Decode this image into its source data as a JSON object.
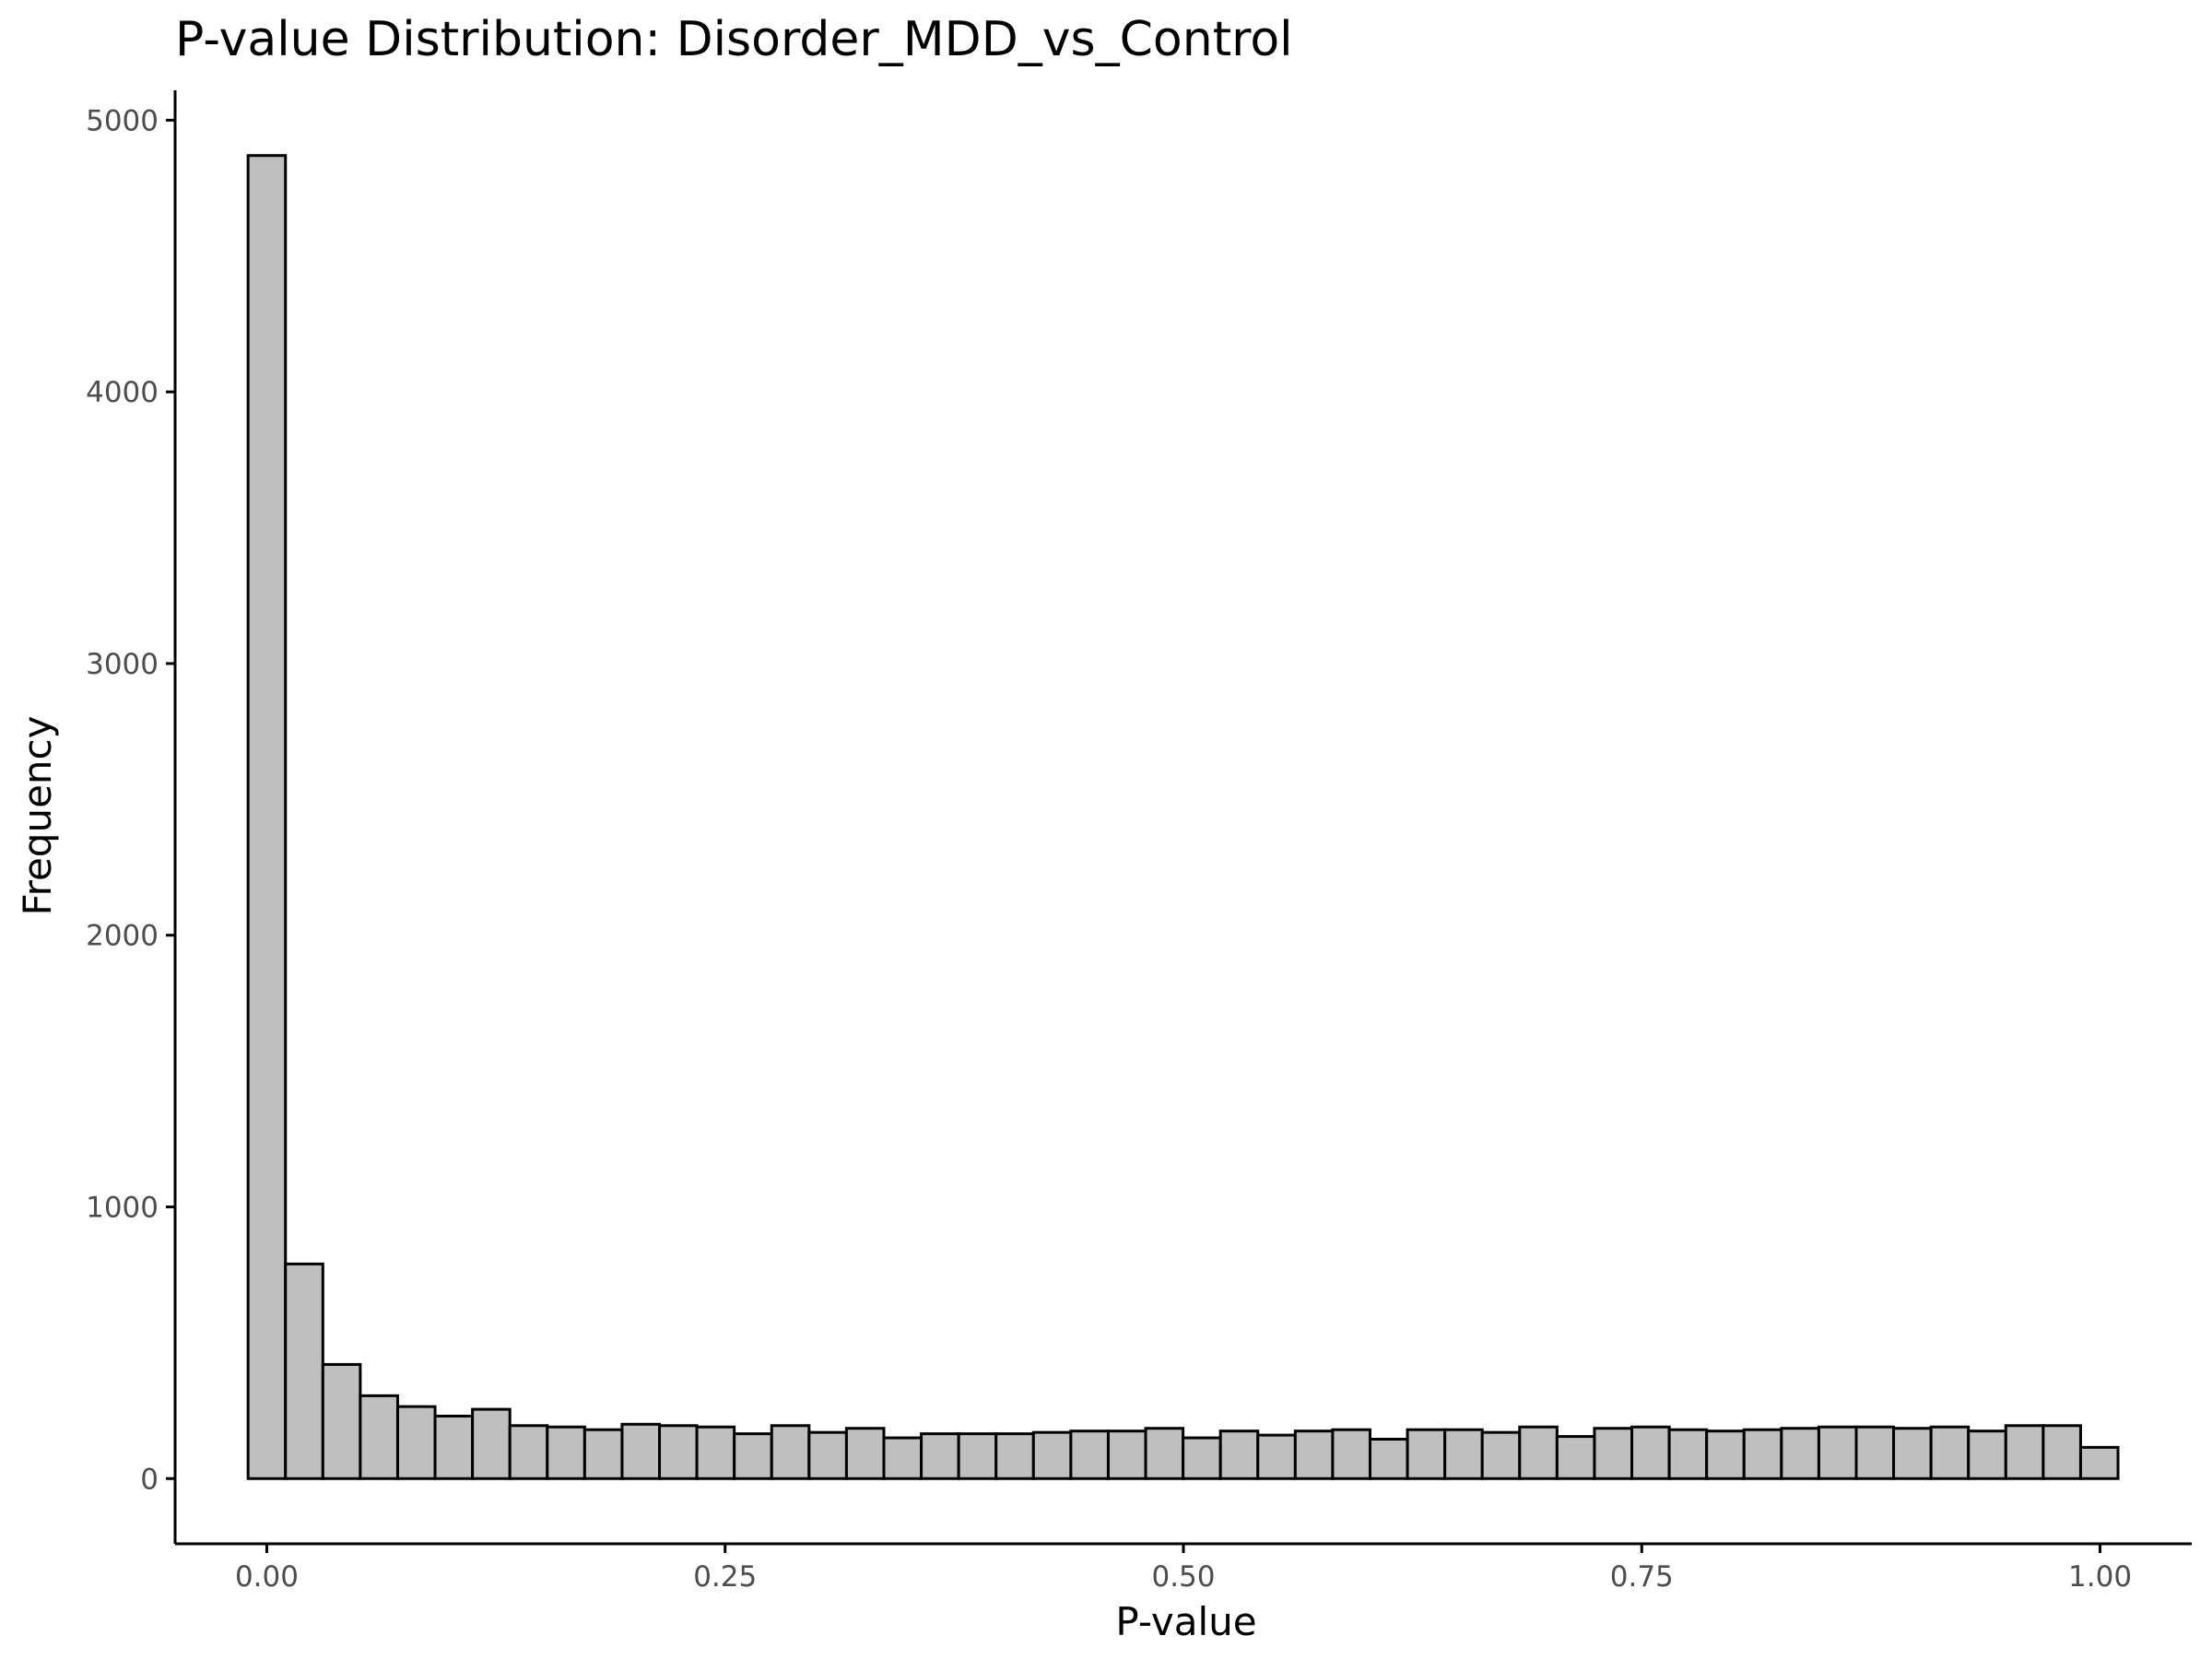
{
  "chart_data": {
    "type": "bar",
    "title": "P-value Distribution: Disorder_MDD_vs_Control",
    "xlabel": "P-value",
    "ylabel": "Frequency",
    "xlim": [
      -0.05,
      1.05
    ],
    "ylim": [
      -240,
      5110
    ],
    "x_ticks": [
      {
        "value": 0.0,
        "label": "0.00"
      },
      {
        "value": 0.25,
        "label": "0.25"
      },
      {
        "value": 0.5,
        "label": "0.50"
      },
      {
        "value": 0.75,
        "label": "0.75"
      },
      {
        "value": 1.0,
        "label": "1.00"
      }
    ],
    "y_ticks": [
      {
        "value": 0,
        "label": "0"
      },
      {
        "value": 1000,
        "label": "1000"
      },
      {
        "value": 2000,
        "label": "2000"
      },
      {
        "value": 3000,
        "label": "3000"
      },
      {
        "value": 4000,
        "label": "4000"
      },
      {
        "value": 5000,
        "label": "5000"
      }
    ],
    "bin_width": 0.0204,
    "bin_start": -0.0102,
    "values": [
      4870,
      790,
      420,
      305,
      265,
      230,
      255,
      195,
      190,
      180,
      200,
      195,
      190,
      165,
      195,
      170,
      185,
      150,
      165,
      165,
      165,
      170,
      175,
      175,
      185,
      150,
      175,
      160,
      175,
      180,
      145,
      180,
      180,
      170,
      190,
      155,
      185,
      190,
      180,
      175,
      180,
      185,
      190,
      190,
      185,
      190,
      175,
      195,
      195,
      115
    ],
    "grid": false,
    "legend": "none",
    "colors": {
      "bar_fill": "#bfbfbf",
      "bar_stroke": "#000000"
    }
  }
}
